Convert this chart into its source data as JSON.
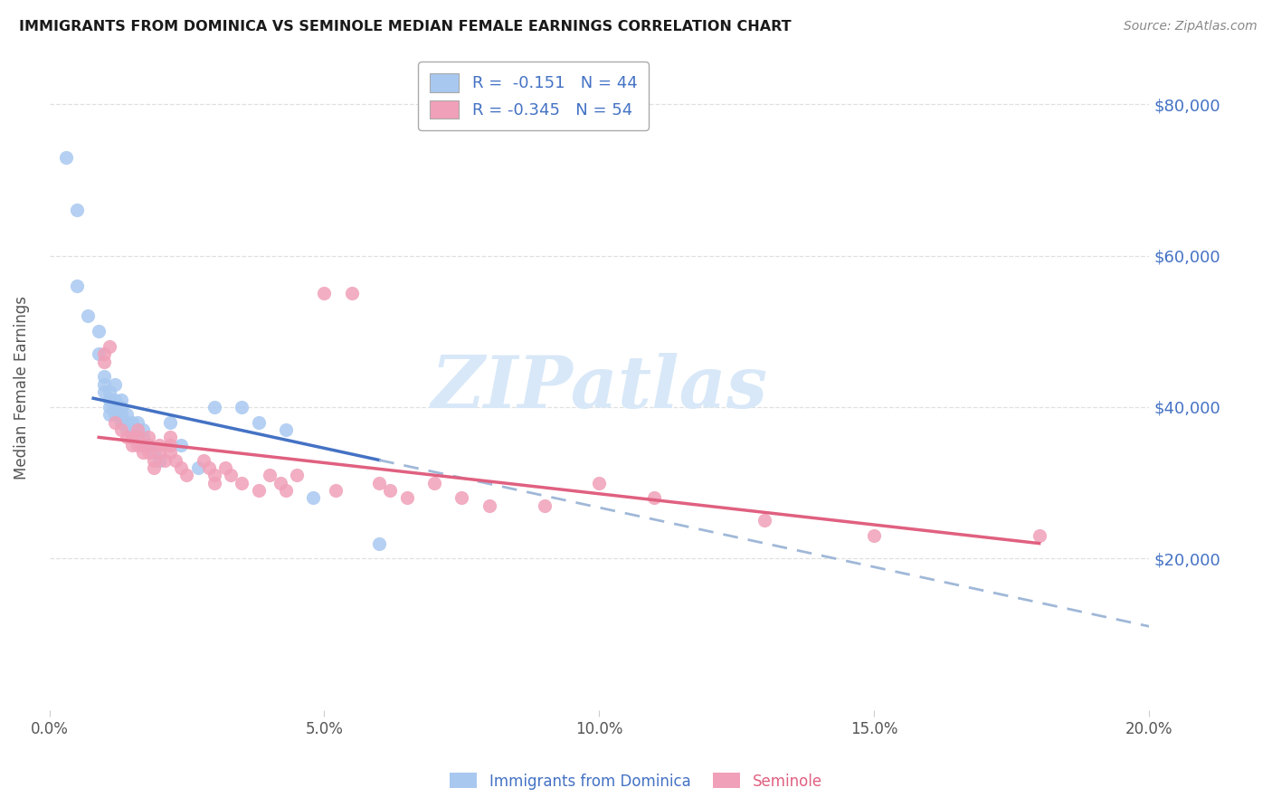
{
  "title": "IMMIGRANTS FROM DOMINICA VS SEMINOLE MEDIAN FEMALE EARNINGS CORRELATION CHART",
  "source": "Source: ZipAtlas.com",
  "ylabel": "Median Female Earnings",
  "xlim": [
    0.0,
    0.2
  ],
  "ylim": [
    0,
    85000
  ],
  "yticks": [
    20000,
    40000,
    60000,
    80000
  ],
  "ytick_labels": [
    "$20,000",
    "$40,000",
    "$60,000",
    "$80,000"
  ],
  "xticks": [
    0.0,
    0.05,
    0.1,
    0.15,
    0.2
  ],
  "xtick_labels": [
    "0.0%",
    "5.0%",
    "10.0%",
    "15.0%",
    "20.0%"
  ],
  "series1_name": "Immigrants from Dominica",
  "series1_color": "#a8c8f0",
  "series1_R": "-0.151",
  "series1_N": "44",
  "series1_x": [
    0.003,
    0.005,
    0.005,
    0.007,
    0.009,
    0.009,
    0.01,
    0.01,
    0.01,
    0.011,
    0.011,
    0.011,
    0.011,
    0.012,
    0.012,
    0.012,
    0.012,
    0.013,
    0.013,
    0.013,
    0.013,
    0.014,
    0.014,
    0.014,
    0.015,
    0.015,
    0.015,
    0.016,
    0.016,
    0.017,
    0.017,
    0.017,
    0.018,
    0.019,
    0.02,
    0.022,
    0.024,
    0.027,
    0.03,
    0.035,
    0.038,
    0.043,
    0.048,
    0.06
  ],
  "series1_y": [
    73000,
    66000,
    56000,
    52000,
    50000,
    47000,
    44000,
    43000,
    42000,
    42000,
    41000,
    40000,
    39000,
    43000,
    41000,
    40000,
    39000,
    41000,
    40000,
    39000,
    38000,
    39000,
    38000,
    37000,
    38000,
    37000,
    36000,
    38000,
    37000,
    35000,
    37000,
    36000,
    35000,
    34000,
    33000,
    38000,
    35000,
    32000,
    40000,
    40000,
    38000,
    37000,
    28000,
    22000
  ],
  "series2_name": "Seminole",
  "series2_color": "#f0a0b8",
  "series2_R": "-0.345",
  "series2_N": "54",
  "series2_x": [
    0.01,
    0.01,
    0.011,
    0.012,
    0.013,
    0.014,
    0.015,
    0.015,
    0.016,
    0.016,
    0.016,
    0.017,
    0.017,
    0.018,
    0.018,
    0.018,
    0.019,
    0.019,
    0.02,
    0.02,
    0.021,
    0.022,
    0.022,
    0.022,
    0.023,
    0.024,
    0.025,
    0.028,
    0.029,
    0.03,
    0.03,
    0.032,
    0.033,
    0.035,
    0.038,
    0.04,
    0.042,
    0.043,
    0.045,
    0.05,
    0.052,
    0.055,
    0.06,
    0.062,
    0.065,
    0.07,
    0.075,
    0.08,
    0.09,
    0.1,
    0.11,
    0.13,
    0.15,
    0.18
  ],
  "series2_y": [
    47000,
    46000,
    48000,
    38000,
    37000,
    36000,
    36000,
    35000,
    37000,
    36000,
    35000,
    35000,
    34000,
    36000,
    35000,
    34000,
    33000,
    32000,
    35000,
    34000,
    33000,
    36000,
    35000,
    34000,
    33000,
    32000,
    31000,
    33000,
    32000,
    31000,
    30000,
    32000,
    31000,
    30000,
    29000,
    31000,
    30000,
    29000,
    31000,
    55000,
    29000,
    55000,
    30000,
    29000,
    28000,
    30000,
    28000,
    27000,
    27000,
    30000,
    28000,
    25000,
    23000,
    23000
  ],
  "line1_color": "#4472c4",
  "line2_color": "#e06080",
  "dash_color": "#a0b8d8",
  "watermark_text": "ZIPatlas",
  "watermark_color": "#d8e8f8",
  "background_color": "#ffffff",
  "grid_color": "#cccccc",
  "title_color": "#1a1a1a",
  "axis_label_color": "#555555",
  "right_ytick_color": "#4472c4"
}
